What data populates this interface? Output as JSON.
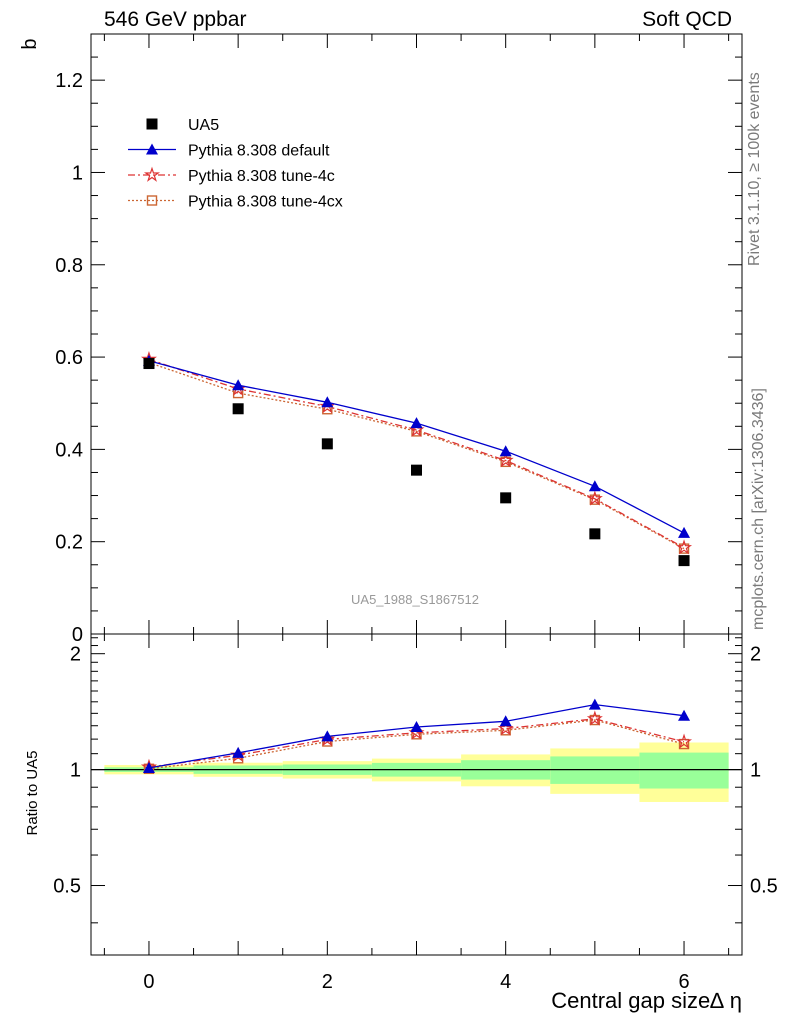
{
  "header": {
    "left_title": "546 GeV ppbar",
    "right_title": "Soft QCD"
  },
  "side_labels": {
    "rivet": "Rivet 3.1.10, ≥ 100k events",
    "mcplots": "mcplots.cern.ch [arXiv:1306.3436]"
  },
  "chart_data": [
    {
      "type": "scatter",
      "panel": "main",
      "ylabel": "b",
      "xlabel": "",
      "xlim": [
        -0.65,
        6.65
      ],
      "ylim": [
        0,
        1.3
      ],
      "x_ticks": [
        0,
        2,
        4,
        6
      ],
      "y_ticks": [
        "0",
        "0.2",
        "0.4",
        "0.6",
        "0.8",
        "1",
        "1.2"
      ],
      "y_tick_values": [
        0,
        0.2,
        0.4,
        0.6,
        0.8,
        1.0,
        1.2
      ],
      "annotation": "UA5_1988_S1867512",
      "legend_position": "top-left",
      "x": [
        0,
        1,
        2,
        3,
        4,
        5,
        6
      ],
      "series": [
        {
          "name": "UA5",
          "style": "markers",
          "marker": "square",
          "color": "#000000",
          "values": [
            0.586,
            0.488,
            0.412,
            0.355,
            0.295,
            0.217,
            0.159
          ]
        },
        {
          "name": "Pythia 8.308 default",
          "style": "solid",
          "marker": "triangle",
          "color": "#0000cc",
          "values": [
            0.592,
            0.539,
            0.502,
            0.457,
            0.396,
            0.32,
            0.219
          ]
        },
        {
          "name": "Pythia 8.308 tune-4c",
          "style": "dashdot",
          "marker": "star",
          "color": "#dd3333",
          "values": [
            0.595,
            0.531,
            0.493,
            0.442,
            0.376,
            0.293,
            0.187
          ]
        },
        {
          "name": "Pythia 8.308 tune-4cx",
          "style": "dotted",
          "marker": "open-square",
          "color": "#cc6633",
          "values": [
            0.588,
            0.522,
            0.487,
            0.439,
            0.373,
            0.291,
            0.185
          ]
        }
      ]
    },
    {
      "type": "line",
      "panel": "ratio",
      "ylabel": "Ratio to UA5",
      "xlabel": "Central gap size∆ η",
      "xlim": [
        -0.65,
        6.65
      ],
      "ylim": [
        0.33,
        2.25
      ],
      "x_ticks": [
        0,
        2,
        4,
        6
      ],
      "y_ticks": [
        "0.5",
        "1",
        "2"
      ],
      "y_tick_values": [
        0.5,
        1.0,
        2.0
      ],
      "x": [
        0,
        1,
        2,
        3,
        4,
        5,
        6
      ],
      "uncertainty_bands": {
        "stat_color": "#99ff99",
        "syst_color": "#ffff99",
        "stat_halfwidth": [
          0.014,
          0.025,
          0.031,
          0.041,
          0.058,
          0.082,
          0.107
        ],
        "total_halfwidth": [
          0.028,
          0.042,
          0.052,
          0.068,
          0.095,
          0.135,
          0.176
        ]
      },
      "series": [
        {
          "name": "Pythia 8.308 default",
          "style": "solid",
          "marker": "triangle",
          "color": "#0000cc",
          "values": [
            1.01,
            1.105,
            1.22,
            1.29,
            1.335,
            1.475,
            1.38
          ]
        },
        {
          "name": "Pythia 8.308 tune-4c",
          "style": "dashdot",
          "marker": "star",
          "color": "#dd3333",
          "values": [
            1.015,
            1.09,
            1.198,
            1.246,
            1.278,
            1.355,
            1.18
          ]
        },
        {
          "name": "Pythia 8.308 tune-4cx",
          "style": "dotted",
          "marker": "open-square",
          "color": "#cc6633",
          "values": [
            1.005,
            1.07,
            1.183,
            1.235,
            1.265,
            1.345,
            1.165
          ]
        }
      ]
    }
  ]
}
